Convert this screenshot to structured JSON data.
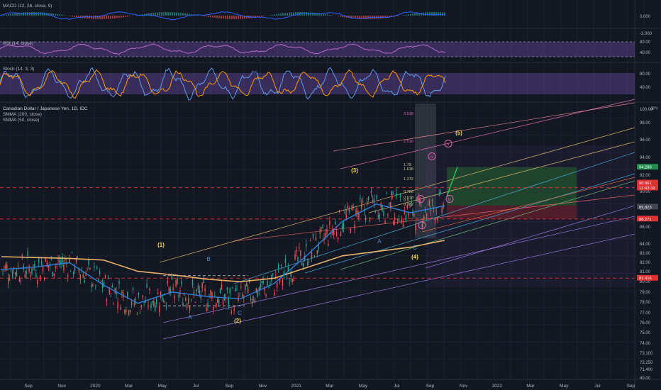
{
  "indicators": {
    "macd": {
      "label": "MACD (12, 26, close, 9)",
      "ticks": [
        "0.000",
        "-2.000"
      ]
    },
    "rsi": {
      "label": "RSI (14, close)",
      "ticks": [
        "80.00",
        "40.00"
      ]
    },
    "stoch": {
      "label": "Stoch (14, 3, 3)",
      "ticks": [
        "80.00",
        "40.00"
      ]
    }
  },
  "main": {
    "title": "Canadian Dollar / Japanese Yen, 1D, IDC",
    "legend": [
      "SMMA (200, close)",
      "SMMA (50, close)"
    ],
    "currency": "JPY",
    "top_tick": "100.00",
    "price_ticks": [
      "98.00",
      "96.00",
      "94.00",
      "92.00",
      "90.00",
      "88.00",
      "86.00",
      "84.00",
      "83.00",
      "82.00",
      "81.00",
      "80.00",
      "79.00",
      "78.00",
      "77.00",
      "76.00",
      "75.00",
      "74.00",
      "73.100",
      "72.250",
      "71.400",
      "40.00"
    ],
    "price_tags": [
      {
        "text": "94.288",
        "color": "#1e8f4e"
      },
      {
        "text": "91.901",
        "color": "#e03131"
      },
      {
        "text": "90.961",
        "color": "#e03131"
      },
      {
        "text": "12:43:33",
        "color": "#e03131"
      },
      {
        "text": "89.823",
        "color": "#434651"
      },
      {
        "text": "88.271",
        "color": "#e03131"
      },
      {
        "text": "81.416",
        "color": "#e03131"
      }
    ],
    "time_ticks": [
      "Sep",
      "Nov",
      "2020",
      "Mar",
      "May",
      "Jul",
      "Sep",
      "Nov",
      "2021",
      "Mar",
      "May",
      "Jul",
      "Sep",
      "Nov",
      "2022",
      "Mar",
      "May",
      "Jul",
      "Sep",
      "No"
    ],
    "wave_labels": [
      "(1)",
      "(2)",
      "(3)",
      "(4)",
      "(5)"
    ],
    "abc_labels": [
      "A",
      "B",
      "C",
      "A",
      "B",
      "C"
    ],
    "sub_wave_labels": [
      "i",
      "ii",
      "iii",
      "iv",
      "v"
    ],
    "fib_labels": [
      "3.618",
      "2.618",
      "1.79",
      "1.618",
      "1.272",
      "0.786",
      "0.618",
      "0.5",
      "0.382"
    ]
  },
  "colors": {
    "background": "#131722",
    "up": "#26a69a",
    "down": "#ef5350",
    "accent_wave": "#f7d74a",
    "abc": "#4c8fd6"
  },
  "chart_data": [
    {
      "type": "line",
      "title": "Canadian Dollar / Japanese Yen, 1D, IDC",
      "xlabel": "",
      "ylabel": "",
      "x": [
        "2019-09",
        "2019-11",
        "2020-01",
        "2020-03",
        "2020-05",
        "2020-07",
        "2020-09",
        "2020-11",
        "2021-01",
        "2021-03",
        "2021-05",
        "2021-07",
        "2021-09",
        "2021-11"
      ],
      "series": [
        {
          "name": "SMMA (200, close)",
          "values": [
            83.9,
            83.8,
            83.7,
            83.5,
            82.2,
            81.8,
            81.3,
            81.0,
            81.4,
            82.7,
            84.0,
            84.5,
            85.0,
            85.8
          ]
        },
        {
          "name": "SMMA (50, close)",
          "values": [
            82.4,
            82.7,
            83.2,
            80.6,
            78.5,
            79.8,
            79.3,
            79.0,
            80.8,
            84.2,
            88.0,
            90.0,
            89.0,
            89.8
          ]
        }
      ],
      "ylim": [
        70.5,
        100.5
      ],
      "horizontal_levels": [
        91.901,
        88.271,
        81.416,
        94.288,
        89.823
      ]
    },
    {
      "type": "line",
      "title": "MACD (12, 26, close, 9)",
      "ylim": [
        -2.5,
        1.5
      ]
    },
    {
      "type": "line",
      "title": "RSI (14, close)",
      "ylim": [
        20,
        90
      ]
    },
    {
      "type": "line",
      "title": "Stoch (14, 3, 3)",
      "ylim": [
        0,
        100
      ]
    }
  ]
}
